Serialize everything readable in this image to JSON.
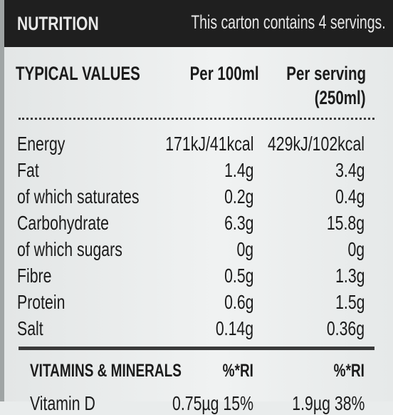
{
  "header": {
    "title": "NUTRITION",
    "note": "This carton contains 4 servings."
  },
  "columns": {
    "label": "TYPICAL VALUES",
    "per100": "Per 100ml",
    "perServingLine1": "Per serving",
    "perServingLine2": "(250ml)"
  },
  "rows": [
    {
      "label": "Energy",
      "per100": "171kJ/41kcal",
      "serving": "429kJ/102kcal"
    },
    {
      "label": "Fat",
      "per100": "1.4g",
      "serving": "3.4g"
    },
    {
      "label": "of which saturates",
      "per100": "0.2g",
      "serving": "0.4g"
    },
    {
      "label": "Carbohydrate",
      "per100": "6.3g",
      "serving": "15.8g"
    },
    {
      "label": "of which sugars",
      "per100": "0g",
      "serving": "0g"
    },
    {
      "label": "Fibre",
      "per100": "0.5g",
      "serving": "1.3g"
    },
    {
      "label": "Protein",
      "per100": "0.6g",
      "serving": "1.5g"
    },
    {
      "label": "Salt",
      "per100": "0.14g",
      "serving": "0.36g"
    }
  ],
  "vitamins": {
    "label": "VITAMINS & MINERALS",
    "ri100": "%*RI",
    "riServing": "%*RI",
    "partialRow": {
      "label": "Vitamin D",
      "per100": "0.75µg 15%",
      "serving": "1.9µg 38%"
    }
  }
}
